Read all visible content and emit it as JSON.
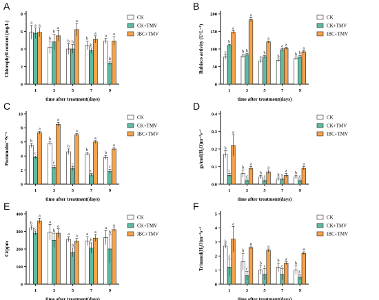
{
  "colors": {
    "CK": "#ffffff",
    "CK+TMV": "#5fb9a3",
    "IBC+TMV": "#f4a24c",
    "stroke": "#222222"
  },
  "chart_data": [
    {
      "type": "bar",
      "panel": "A",
      "ylabel": "Chlorophyll content (mg/L)",
      "xlabel": "time after treatment(days)",
      "categories": [
        "1",
        "3",
        "5",
        "7",
        "9"
      ],
      "ylim": [
        0,
        8
      ],
      "yticks": [
        "0",
        "2",
        "4",
        "6",
        "8"
      ],
      "series": [
        {
          "name": "CK",
          "values": [
            5.9,
            4.2,
            4.0,
            4.4,
            4.9
          ],
          "errors": [
            0.8,
            0.7,
            0.6,
            0.5,
            0.3
          ],
          "labels": [
            "a",
            "b",
            "b",
            "b",
            "a"
          ]
        },
        {
          "name": "CK+TMV",
          "values": [
            5.8,
            4.8,
            4.0,
            3.8,
            2.4
          ],
          "errors": [
            0.6,
            0.9,
            0.5,
            0.3,
            0.2
          ],
          "labels": [
            "a",
            "b",
            "b",
            "b",
            "b"
          ]
        },
        {
          "name": "IBC+TMV",
          "values": [
            5.9,
            5.5,
            6.2,
            5.1,
            4.9
          ],
          "errors": [
            0.5,
            0.6,
            0.7,
            0.4,
            0.5
          ],
          "labels": [
            "a",
            "a",
            "a",
            "a",
            "a"
          ]
        }
      ]
    },
    {
      "type": "bar",
      "panel": "B",
      "ylabel": "Rubisco activity (U·L⁻¹)",
      "xlabel": "time after treatment(days)",
      "categories": [
        "1",
        "3",
        "5",
        "7",
        "9"
      ],
      "ylim": [
        0,
        200
      ],
      "yticks": [
        "0",
        "50",
        "100",
        "150",
        "200"
      ],
      "series": [
        {
          "name": "CK",
          "values": [
            77,
            80,
            66,
            68,
            73
          ],
          "errors": [
            6,
            5,
            5,
            4,
            4
          ],
          "labels": [
            "c",
            "b",
            "c",
            "b",
            "b"
          ]
        },
        {
          "name": "CK+TMV",
          "values": [
            110,
            83,
            78,
            98,
            77
          ],
          "errors": [
            3,
            4,
            3,
            3,
            4
          ],
          "labels": [
            "b",
            "b",
            "b",
            "a",
            "b"
          ]
        },
        {
          "name": "IBC+TMV",
          "values": [
            148,
            183,
            120,
            102,
            92
          ],
          "errors": [
            4,
            6,
            3,
            3,
            3
          ],
          "labels": [
            "a",
            "a",
            "a",
            "a",
            "a"
          ]
        }
      ]
    },
    {
      "type": "bar",
      "panel": "C",
      "ylabel": "Pn/mmolm⁻²S⁻¹",
      "xlabel": "time after treatment(days)",
      "categories": [
        "1",
        "3",
        "5",
        "7",
        "9"
      ],
      "ylim": [
        0,
        10
      ],
      "yticks": [
        "0",
        "2",
        "4",
        "6",
        "8",
        "10"
      ],
      "series": [
        {
          "name": "CK",
          "values": [
            5.5,
            5.8,
            4.6,
            4.3,
            3.8
          ],
          "errors": [
            0.3,
            0.3,
            0.4,
            0.2,
            0.3
          ],
          "labels": [
            "b",
            "b",
            "b",
            "b",
            "b"
          ]
        },
        {
          "name": "CK+TMV",
          "values": [
            3.8,
            2.4,
            2.2,
            1.3,
            1.8
          ],
          "errors": [
            0.2,
            0.3,
            0.3,
            0.2,
            0.3
          ],
          "labels": [
            "c",
            "c",
            "c",
            "c",
            "c"
          ]
        },
        {
          "name": "IBC+TMV",
          "values": [
            7.3,
            8.5,
            7.0,
            6.0,
            5.0
          ],
          "errors": [
            0.2,
            0.3,
            0.2,
            0.2,
            0.2
          ],
          "labels": [
            "a",
            "a",
            "a",
            "a",
            "a"
          ]
        }
      ]
    },
    {
      "type": "bar",
      "panel": "D",
      "ylabel": "gs/mol(H₂O)m⁻²s⁻¹",
      "xlabel": "time after treatment(days)",
      "categories": [
        "1",
        "3",
        "5",
        "7",
        "9"
      ],
      "ylim": [
        0,
        0.4
      ],
      "yticks": [
        "0.0",
        "0.1",
        "0.2",
        "0.3",
        "0.4"
      ],
      "series": [
        {
          "name": "CK",
          "values": [
            0.17,
            0.06,
            0.04,
            0.03,
            0.04
          ],
          "errors": [
            0.02,
            0.02,
            0.01,
            0.01,
            0.01
          ],
          "labels": [
            "b",
            "b",
            "b",
            "b",
            "b"
          ]
        },
        {
          "name": "CK+TMV",
          "values": [
            0.05,
            0.02,
            0.02,
            0.03,
            0.02
          ],
          "errors": [
            0.01,
            0.01,
            0.01,
            0.01,
            0.01
          ],
          "labels": [
            "c",
            "c",
            "c",
            "c",
            "c"
          ]
        },
        {
          "name": "IBC+TMV",
          "values": [
            0.22,
            0.09,
            0.07,
            0.05,
            0.09
          ],
          "errors": [
            0.06,
            0.01,
            0.01,
            0.01,
            0.01
          ],
          "labels": [
            "a",
            "a",
            "a",
            "a",
            "a"
          ]
        }
      ]
    },
    {
      "type": "bar",
      "panel": "E",
      "ylabel": "Ci/ppm",
      "xlabel": "time after treatment(days)",
      "categories": [
        "1",
        "3",
        "5",
        "7",
        "9"
      ],
      "ylim": [
        0,
        400
      ],
      "yticks": [
        "0",
        "100",
        "200",
        "300",
        "400"
      ],
      "series": [
        {
          "name": "CK",
          "values": [
            320,
            295,
            255,
            245,
            265
          ],
          "errors": [
            12,
            45,
            15,
            25,
            40
          ],
          "labels": [
            "b",
            "a",
            "a",
            "a",
            "a"
          ]
        },
        {
          "name": "CK+TMV",
          "values": [
            290,
            250,
            180,
            205,
            200
          ],
          "errors": [
            12,
            40,
            25,
            30,
            80
          ],
          "labels": [
            "c",
            "b",
            "b",
            "b",
            "b"
          ]
        },
        {
          "name": "IBC+TMV",
          "values": [
            360,
            290,
            245,
            262,
            310
          ],
          "errors": [
            15,
            25,
            15,
            20,
            10
          ],
          "labels": [
            "a",
            "a",
            "a",
            "a",
            "a"
          ]
        }
      ]
    },
    {
      "type": "bar",
      "panel": "F",
      "ylabel": "Tr/mmol(H₂O)m⁻²s⁻¹",
      "xlabel": "time after treatment(days)",
      "categories": [
        "1",
        "3",
        "5",
        "7",
        "9"
      ],
      "ylim": [
        0,
        5
      ],
      "yticks": [
        "0",
        "1",
        "2",
        "3",
        "4",
        "5"
      ],
      "series": [
        {
          "name": "CK",
          "values": [
            2.7,
            1.6,
            1.0,
            1.2,
            1.0
          ],
          "errors": [
            0.15,
            0.6,
            0.3,
            0.3,
            0.3
          ],
          "labels": [
            "b",
            "b",
            "b",
            "b",
            "b"
          ]
        },
        {
          "name": "CK+TMV",
          "values": [
            1.2,
            0.6,
            0.7,
            0.7,
            0.5
          ],
          "errors": [
            0.6,
            0.3,
            0.4,
            0.4,
            0.2
          ],
          "labels": [
            "c",
            "c",
            "c",
            "c",
            "c"
          ]
        },
        {
          "name": "IBC+TMV",
          "values": [
            3.2,
            2.6,
            2.4,
            1.5,
            2.2
          ],
          "errors": [
            0.9,
            0.1,
            0.1,
            0.1,
            0.1
          ],
          "labels": [
            "a",
            "a",
            "a",
            "a",
            "a"
          ]
        }
      ]
    }
  ]
}
